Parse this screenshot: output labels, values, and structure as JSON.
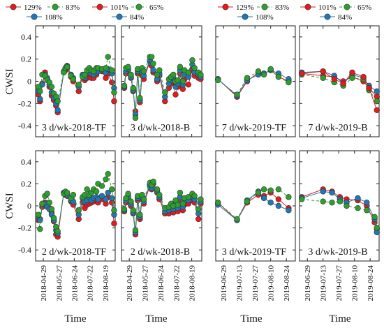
{
  "chart_data": {
    "type": "line",
    "markers": "circle",
    "figure_ylabel": "CWSI",
    "figure_xlabel": "Time",
    "legend": {
      "placement": "top",
      "entries": [
        {
          "name": "129%",
          "color": "#e41a1c"
        },
        {
          "name": "108%",
          "color": "#1f78b4"
        },
        {
          "name": "83%",
          "color": "#2ca02c"
        },
        {
          "name": "101%",
          "color": "#e41a1c"
        },
        {
          "name": "84%",
          "color": "#1f78b4"
        },
        {
          "name": "65%",
          "color": "#2ca02c"
        }
      ],
      "groups": [
        {
          "entries": [
            0,
            1,
            2
          ]
        },
        {
          "entries": [
            3,
            4,
            5
          ]
        },
        {
          "entries": [
            0,
            1,
            2
          ]
        },
        {
          "entries": [
            3,
            4,
            5
          ]
        }
      ]
    },
    "ylim": [
      -0.5,
      0.5
    ],
    "yticks": [
      -0.4,
      -0.2,
      0,
      0.2,
      0.4
    ],
    "grid": false,
    "x_axes": {
      "2018": {
        "xlim": [
          "2018-04-15",
          "2018-09-06"
        ],
        "ticks": [
          "2018-04-29",
          "2018-05-27",
          "2018-06-24",
          "2018-07-22",
          "2018-08-19"
        ]
      },
      "2019": {
        "xlim": [
          "2019-06-22",
          "2019-09-01"
        ],
        "ticks": [
          "2019-06-29",
          "2019-07-13",
          "2019-07-27",
          "2019-08-10",
          "2019-08-24"
        ]
      }
    },
    "panels": [
      {
        "label": "3 d/wk-2018-TF",
        "axis": "2018",
        "row": 0,
        "col": 0,
        "x": [
          "2018-04-20",
          "2018-04-23",
          "2018-04-27",
          "2018-05-02",
          "2018-05-06",
          "2018-05-10",
          "2018-05-14",
          "2018-05-18",
          "2018-05-22",
          "2018-05-25",
          "2018-06-05",
          "2018-06-08",
          "2018-06-11",
          "2018-06-18",
          "2018-06-22",
          "2018-07-02",
          "2018-07-09",
          "2018-07-13",
          "2018-07-17",
          "2018-07-21",
          "2018-07-25",
          "2018-07-29",
          "2018-08-03",
          "2018-08-06",
          "2018-08-13",
          "2018-08-20",
          "2018-08-24",
          "2018-08-31",
          "2018-09-04"
        ],
        "series": [
          {
            "legend": 0,
            "values": [
              -0.12,
              -0.18,
              -0.02,
              0.08,
              0.02,
              -0.05,
              -0.13,
              -0.17,
              -0.22,
              -0.28,
              0.08,
              0.1,
              0.12,
              0.04,
              0.0,
              -0.09,
              0.05,
              0.01,
              0.03,
              0.07,
              0.03,
              0.03,
              0.06,
              0.11,
              0.09,
              0.03,
              0.07,
              -0.01,
              -0.18
            ]
          },
          {
            "legend": 1,
            "values": [
              -0.09,
              -0.16,
              -0.03,
              0.06,
              0.03,
              -0.03,
              -0.1,
              -0.15,
              -0.2,
              -0.26,
              0.09,
              0.12,
              0.14,
              0.06,
              0.03,
              -0.05,
              0.06,
              0.03,
              0.08,
              0.1,
              0.07,
              0.06,
              0.08,
              0.09,
              0.1,
              0.08,
              0.11,
              0.07,
              -0.06
            ]
          },
          {
            "legend": 2,
            "values": [
              -0.05,
              -0.09,
              0.06,
              0.05,
              0.01,
              -0.01,
              -0.05,
              -0.11,
              -0.14,
              -0.18,
              0.08,
              0.12,
              0.13,
              0.05,
              0.02,
              -0.03,
              0.04,
              0.06,
              0.1,
              0.12,
              0.1,
              0.09,
              0.12,
              0.12,
              0.11,
              0.12,
              0.22,
              0.1,
              -0.1
            ]
          }
        ]
      },
      {
        "label": "3 d/wk-2018-B",
        "axis": "2018",
        "row": 0,
        "col": 1,
        "x": [
          "2018-04-20",
          "2018-04-23",
          "2018-04-27",
          "2018-05-02",
          "2018-05-06",
          "2018-05-10",
          "2018-05-14",
          "2018-05-18",
          "2018-05-22",
          "2018-05-25",
          "2018-06-05",
          "2018-06-08",
          "2018-06-11",
          "2018-06-18",
          "2018-06-22",
          "2018-07-02",
          "2018-07-09",
          "2018-07-13",
          "2018-07-17",
          "2018-07-21",
          "2018-07-25",
          "2018-07-29",
          "2018-08-03",
          "2018-08-06",
          "2018-08-13",
          "2018-08-20",
          "2018-08-24",
          "2018-08-31",
          "2018-09-04"
        ],
        "series": [
          {
            "legend": 0,
            "values": [
              -0.06,
              0.07,
              0.1,
              0.03,
              -0.09,
              -0.27,
              0.07,
              -0.19,
              0.05,
              0.02,
              0.18,
              0.14,
              0.08,
              0.0,
              0.05,
              -0.18,
              -0.06,
              -0.02,
              0.0,
              -0.12,
              -0.05,
              0.07,
              -0.07,
              0.02,
              -0.03,
              0.11,
              0.05,
              0.03,
              0.02
            ]
          },
          {
            "legend": 1,
            "values": [
              -0.05,
              0.09,
              0.11,
              0.04,
              -0.08,
              -0.3,
              0.09,
              -0.17,
              0.08,
              0.05,
              0.19,
              0.16,
              0.1,
              0.02,
              0.07,
              -0.14,
              -0.02,
              0.01,
              0.03,
              -0.05,
              -0.02,
              0.1,
              -0.03,
              0.06,
              0.04,
              0.15,
              0.08,
              0.06,
              0.04
            ]
          },
          {
            "legend": 2,
            "values": [
              -0.04,
              0.12,
              0.13,
              0.06,
              -0.06,
              -0.33,
              0.11,
              -0.15,
              0.12,
              0.09,
              0.22,
              0.22,
              0.16,
              0.06,
              0.1,
              -0.1,
              0.02,
              0.04,
              0.06,
              0.0,
              0.01,
              0.13,
              0.0,
              0.1,
              0.08,
              0.19,
              0.12,
              0.08,
              0.06
            ]
          }
        ]
      },
      {
        "label": "7 d/wk-2019-TF",
        "axis": "2019",
        "row": 0,
        "col": 2,
        "x": [
          "2019-06-24",
          "2019-07-11",
          "2019-07-20",
          "2019-07-30",
          "2019-08-04",
          "2019-08-10",
          "2019-08-17",
          "2019-08-26"
        ],
        "series": [
          {
            "legend": 0,
            "values": [
              0.02,
              -0.14,
              0.0,
              0.08,
              0.07,
              0.1,
              0.04,
              0.0
            ]
          },
          {
            "legend": 1,
            "values": [
              0.02,
              -0.13,
              0.01,
              0.06,
              0.07,
              0.1,
              0.07,
              0.02
            ]
          },
          {
            "legend": 2,
            "values": [
              0.01,
              -0.12,
              0.03,
              0.09,
              0.06,
              0.11,
              0.04,
              -0.01
            ]
          }
        ]
      },
      {
        "label": "7 d/wk-2019-B",
        "axis": "2019",
        "row": 0,
        "col": 3,
        "x": [
          "2019-06-24",
          "2019-07-13",
          "2019-07-23",
          "2019-07-31",
          "2019-08-08",
          "2019-08-18",
          "2019-08-23",
          "2019-08-30"
        ],
        "series": [
          {
            "legend": 0,
            "values": [
              0.07,
              0.05,
              0.04,
              0.0,
              0.04,
              0.0,
              -0.06,
              -0.14
            ]
          },
          {
            "legend": 1,
            "values": [
              0.08,
              0.09,
              0.05,
              -0.02,
              0.06,
              0.03,
              -0.04,
              -0.09
            ]
          },
          {
            "legend": 2,
            "values": [
              0.06,
              0.03,
              -0.01,
              -0.04,
              0.03,
              0.02,
              -0.08,
              -0.18
            ]
          },
          {
            "legend": 3,
            "values": [
              0.07,
              0.09,
              0.02,
              -0.02,
              0.08,
              0.04,
              -0.06,
              -0.26
            ]
          }
        ]
      },
      {
        "label": "2 d/wk-2018-TF",
        "axis": "2018",
        "row": 1,
        "col": 0,
        "x": [
          "2018-04-20",
          "2018-04-23",
          "2018-04-27",
          "2018-05-02",
          "2018-05-06",
          "2018-05-10",
          "2018-05-14",
          "2018-05-18",
          "2018-05-22",
          "2018-05-25",
          "2018-06-05",
          "2018-06-08",
          "2018-06-11",
          "2018-06-18",
          "2018-06-22",
          "2018-07-02",
          "2018-07-09",
          "2018-07-13",
          "2018-07-17",
          "2018-07-21",
          "2018-07-25",
          "2018-07-29",
          "2018-08-03",
          "2018-08-06",
          "2018-08-13",
          "2018-08-20",
          "2018-08-24",
          "2018-08-31",
          "2018-09-04"
        ],
        "series": [
          {
            "legend": 3,
            "values": [
              -0.13,
              -0.12,
              -0.01,
              0.03,
              0.0,
              -0.02,
              -0.06,
              -0.14,
              -0.26,
              -0.28,
              0.12,
              0.1,
              0.09,
              0.04,
              0.01,
              -0.12,
              0.03,
              -0.02,
              0.01,
              0.02,
              0.03,
              0.04,
              0.05,
              0.03,
              0.06,
              0.02,
              0.08,
              0.03,
              -0.16
            ]
          },
          {
            "legend": 4,
            "values": [
              -0.1,
              -0.13,
              0.01,
              0.02,
              -0.01,
              -0.03,
              -0.08,
              -0.13,
              -0.22,
              -0.25,
              0.12,
              0.11,
              0.1,
              0.05,
              0.04,
              -0.08,
              0.07,
              0.04,
              0.05,
              0.08,
              0.05,
              0.07,
              0.08,
              0.06,
              0.09,
              0.06,
              0.12,
              0.07,
              -0.08
            ]
          },
          {
            "legend": 5,
            "values": [
              -0.08,
              -0.21,
              0.02,
              0.09,
              0.11,
              0.03,
              -0.03,
              -0.11,
              -0.19,
              -0.23,
              0.11,
              0.13,
              0.12,
              0.07,
              0.1,
              -0.04,
              0.08,
              0.1,
              0.15,
              0.1,
              0.12,
              0.15,
              0.13,
              0.2,
              0.18,
              0.24,
              0.29,
              0.15,
              -0.04
            ]
          }
        ]
      },
      {
        "label": "2 d/wk-2018-B",
        "axis": "2018",
        "row": 1,
        "col": 1,
        "x": [
          "2018-04-20",
          "2018-04-23",
          "2018-04-27",
          "2018-05-02",
          "2018-05-06",
          "2018-05-10",
          "2018-05-14",
          "2018-05-18",
          "2018-05-22",
          "2018-05-25",
          "2018-06-05",
          "2018-06-08",
          "2018-06-11",
          "2018-06-18",
          "2018-06-22",
          "2018-07-02",
          "2018-07-09",
          "2018-07-13",
          "2018-07-17",
          "2018-07-21",
          "2018-07-25",
          "2018-07-29",
          "2018-08-03",
          "2018-08-06",
          "2018-08-13",
          "2018-08-20",
          "2018-08-24",
          "2018-08-31",
          "2018-09-04"
        ],
        "series": [
          {
            "legend": 3,
            "values": [
              -0.05,
              0.03,
              0.07,
              0.0,
              -0.07,
              -0.26,
              0.05,
              -0.12,
              0.06,
              0.02,
              0.18,
              0.15,
              0.2,
              0.12,
              0.06,
              -0.07,
              -0.07,
              -0.04,
              -0.06,
              -0.01,
              -0.05,
              0.05,
              -0.04,
              0.01,
              0.02,
              0.05,
              0.03,
              -0.12,
              0.02
            ]
          },
          {
            "legend": 4,
            "values": [
              -0.04,
              0.05,
              0.09,
              0.02,
              -0.06,
              -0.24,
              0.07,
              -0.1,
              0.08,
              0.04,
              0.19,
              0.16,
              0.21,
              0.13,
              0.08,
              -0.05,
              -0.04,
              -0.01,
              -0.03,
              0.02,
              -0.02,
              0.08,
              -0.01,
              0.04,
              0.05,
              0.08,
              0.06,
              -0.07,
              0.04
            ]
          },
          {
            "legend": 5,
            "values": [
              -0.03,
              0.07,
              0.11,
              0.04,
              -0.04,
              -0.22,
              0.09,
              -0.08,
              0.1,
              0.06,
              0.21,
              0.19,
              0.22,
              0.15,
              0.1,
              -0.02,
              -0.01,
              0.02,
              0.0,
              0.05,
              0.01,
              0.12,
              0.02,
              0.07,
              0.08,
              0.11,
              0.09,
              -0.03,
              0.06
            ]
          }
        ]
      },
      {
        "label": "3 d/wk-2019-TF",
        "axis": "2019",
        "row": 1,
        "col": 2,
        "x": [
          "2019-06-24",
          "2019-07-11",
          "2019-07-20",
          "2019-07-30",
          "2019-08-04",
          "2019-08-10",
          "2019-08-17",
          "2019-08-26"
        ],
        "series": [
          {
            "legend": 3,
            "values": [
              0.03,
              -0.13,
              0.03,
              0.1,
              0.09,
              0.12,
              0.06,
              -0.02
            ]
          },
          {
            "legend": 4,
            "values": [
              0.01,
              -0.13,
              0.05,
              0.13,
              0.07,
              0.03,
              0.0,
              -0.04
            ]
          },
          {
            "legend": 5,
            "values": [
              0.03,
              -0.12,
              0.04,
              0.12,
              0.15,
              0.14,
              0.15,
              0.08
            ]
          }
        ]
      },
      {
        "label": "3 d/wk-2019-B",
        "axis": "2019",
        "row": 1,
        "col": 3,
        "x": [
          "2019-06-24",
          "2019-07-13",
          "2019-07-21",
          "2019-07-28",
          "2019-08-03",
          "2019-08-13",
          "2019-08-21",
          "2019-08-28",
          "2019-08-30"
        ],
        "series": [
          {
            "legend": 3,
            "values": [
              0.08,
              0.15,
              0.13,
              0.08,
              0.06,
              0.05,
              0.0,
              -0.15,
              -0.21
            ]
          },
          {
            "legend": 4,
            "values": [
              0.07,
              0.13,
              0.12,
              0.06,
              0.03,
              0.07,
              0.03,
              -0.12,
              -0.24
            ]
          },
          {
            "legend": 5,
            "values": [
              0.06,
              0.04,
              0.03,
              0.04,
              0.0,
              -0.02,
              -0.04,
              -0.1,
              -0.2
            ]
          }
        ]
      }
    ]
  }
}
